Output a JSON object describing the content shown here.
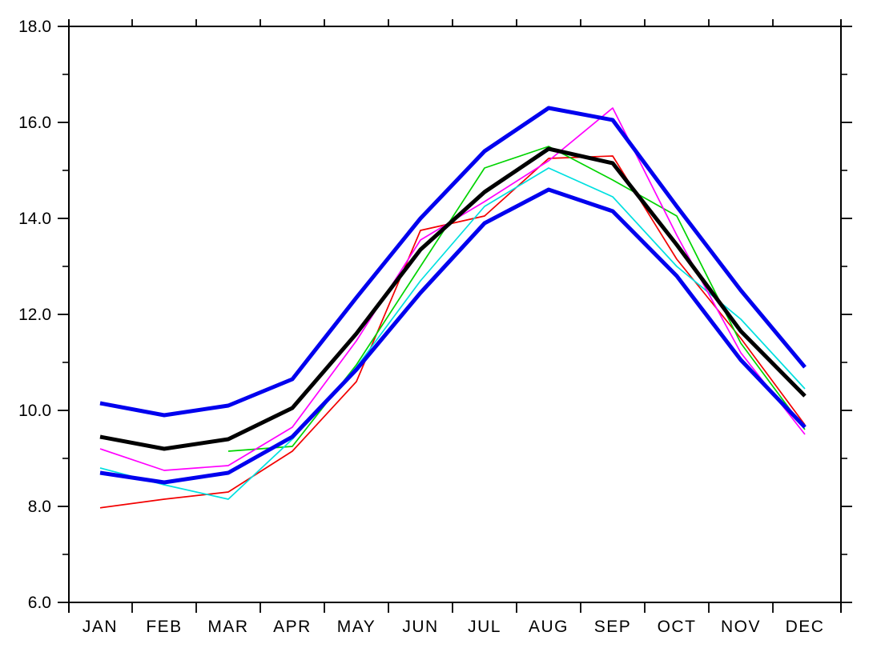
{
  "chart_data": {
    "type": "line",
    "title": "",
    "xlabel": "",
    "ylabel": "",
    "grid": false,
    "legend": "none",
    "background": "#ffffff",
    "frame_color": "#000000",
    "categories": [
      "JAN",
      "FEB",
      "MAR",
      "APR",
      "MAY",
      "JUN",
      "JUL",
      "AUG",
      "SEP",
      "OCT",
      "NOV",
      "DEC"
    ],
    "ylim": [
      6.0,
      18.0
    ],
    "ytick_major_values": [
      6,
      8,
      10,
      12,
      14,
      16,
      18
    ],
    "ytick_major_labels": [
      "6.0",
      "8.0",
      "10.0",
      "12.0",
      "14.0",
      "16.0",
      "18.0"
    ],
    "ytick_minor_values": [
      7,
      9,
      11,
      13,
      15,
      17
    ],
    "series": [
      {
        "name": "member-red",
        "color": "#f20000",
        "stroke_width": 1.7,
        "values": [
          7.97,
          8.15,
          8.3,
          9.15,
          10.6,
          13.75,
          14.05,
          15.25,
          15.3,
          13.15,
          11.5,
          9.7
        ]
      },
      {
        "name": "member-green",
        "color": "#00d400",
        "stroke_width": 1.7,
        "values": [
          null,
          null,
          9.15,
          9.25,
          10.95,
          13.0,
          15.05,
          15.5,
          14.8,
          14.05,
          11.4,
          9.6
        ]
      },
      {
        "name": "member-cyan",
        "color": "#00e0e0",
        "stroke_width": 1.7,
        "values": [
          8.8,
          8.45,
          8.15,
          9.4,
          10.9,
          12.7,
          14.25,
          15.05,
          14.45,
          13.0,
          11.9,
          10.45
        ]
      },
      {
        "name": "member-magenta",
        "color": "#ff00ff",
        "stroke_width": 1.7,
        "values": [
          9.2,
          8.75,
          8.85,
          9.65,
          11.45,
          13.55,
          14.35,
          15.2,
          16.3,
          13.65,
          11.2,
          9.5
        ]
      },
      {
        "name": "ensemble-mean-black",
        "color": "#000000",
        "stroke_width": 5,
        "values": [
          9.45,
          9.2,
          9.4,
          10.05,
          11.6,
          13.35,
          14.55,
          15.45,
          15.15,
          13.45,
          11.65,
          10.3
        ]
      },
      {
        "name": "lower-envelope-blue",
        "color": "#0000ee",
        "stroke_width": 5,
        "values": [
          8.7,
          8.5,
          8.7,
          9.45,
          10.85,
          12.45,
          13.9,
          14.6,
          14.15,
          12.8,
          11.05,
          9.65
        ]
      },
      {
        "name": "upper-envelope-blue",
        "color": "#0000ee",
        "stroke_width": 5,
        "values": [
          10.15,
          9.9,
          10.1,
          10.65,
          12.35,
          14.0,
          15.4,
          16.3,
          16.05,
          14.25,
          12.5,
          10.9
        ]
      }
    ]
  }
}
